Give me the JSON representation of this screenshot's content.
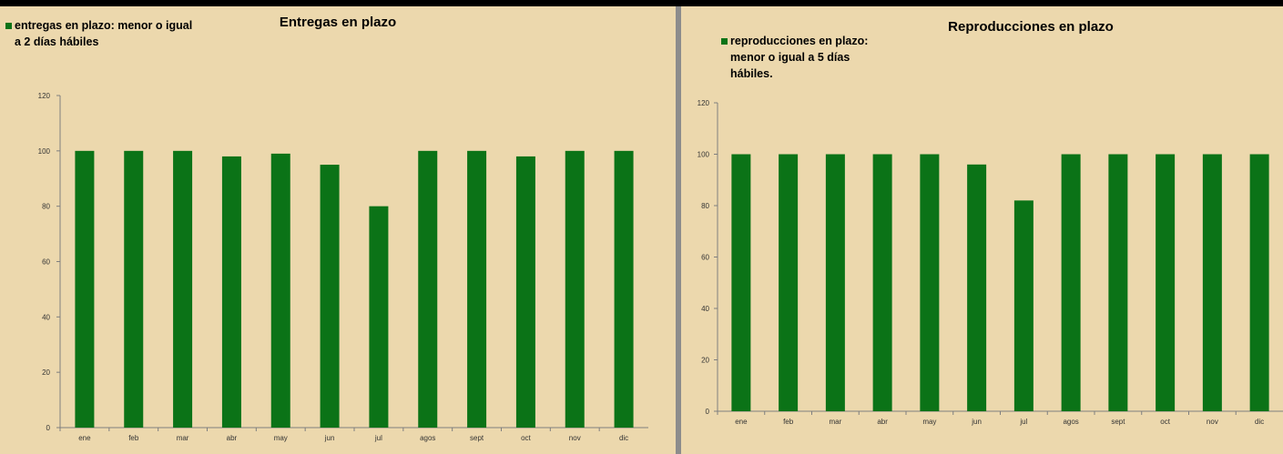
{
  "chart_data": [
    {
      "type": "bar",
      "title": "Entregas en plazo",
      "legend": {
        "placement": "top-left",
        "lines": [
          "entregas en plazo: menor o igual",
          "a 2 días hábiles"
        ]
      },
      "categories": [
        "ene",
        "feb",
        "mar",
        "abr",
        "may",
        "jun",
        "jul",
        "agos",
        "sept",
        "oct",
        "nov",
        "dic"
      ],
      "series": [
        {
          "name": "entregas en plazo: menor o igual a 2 días hábiles",
          "color": "#0b7317",
          "values": [
            100,
            100,
            100,
            98,
            99,
            95,
            80,
            100,
            100,
            98,
            100,
            100
          ]
        }
      ],
      "ylim": [
        0,
        120
      ],
      "yticks": [
        0,
        20,
        40,
        60,
        80,
        100,
        120
      ],
      "xlabel": "",
      "ylabel": "",
      "grid": false
    },
    {
      "type": "bar",
      "title": "Reproducciones en plazo",
      "legend": {
        "placement": "top-left",
        "lines": [
          "reproducciones en plazo:",
          "menor o igual a 5 días",
          "hábiles."
        ]
      },
      "categories": [
        "ene",
        "feb",
        "mar",
        "abr",
        "may",
        "jun",
        "jul",
        "agos",
        "sept",
        "oct",
        "nov",
        "dic"
      ],
      "series": [
        {
          "name": "reproducciones en plazo: menor o igual a 5 días hábiles.",
          "color": "#0b7317",
          "values": [
            100,
            100,
            100,
            100,
            100,
            96,
            82,
            100,
            100,
            100,
            100,
            100
          ]
        }
      ],
      "ylim": [
        0,
        120
      ],
      "yticks": [
        0,
        20,
        40,
        60,
        80,
        100,
        120
      ],
      "xlabel": "",
      "ylabel": "",
      "grid": false
    }
  ]
}
